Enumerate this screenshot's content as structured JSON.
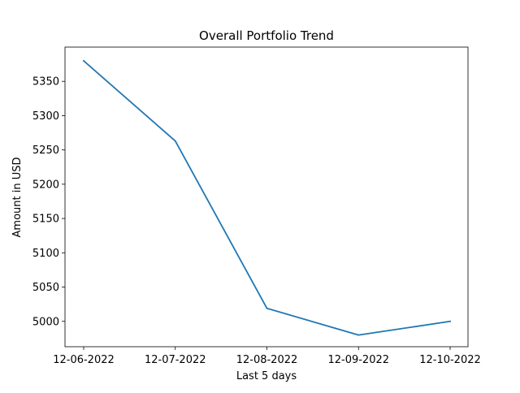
{
  "chart_data": {
    "type": "line",
    "title": "Overall Portfolio Trend",
    "xlabel": "Last 5 days",
    "ylabel": "Amount in USD",
    "categories": [
      "12-06-2022",
      "12-07-2022",
      "12-08-2022",
      "12-09-2022",
      "12-10-2022"
    ],
    "series": [
      {
        "values": [
          5380,
          5263,
          5019,
          4980,
          5000
        ],
        "color": "#1f77b4"
      }
    ],
    "ylim": [
      4963,
      5400
    ],
    "yticks": [
      5000,
      5050,
      5100,
      5150,
      5200,
      5250,
      5300,
      5350
    ],
    "grid": false,
    "legend": false
  }
}
